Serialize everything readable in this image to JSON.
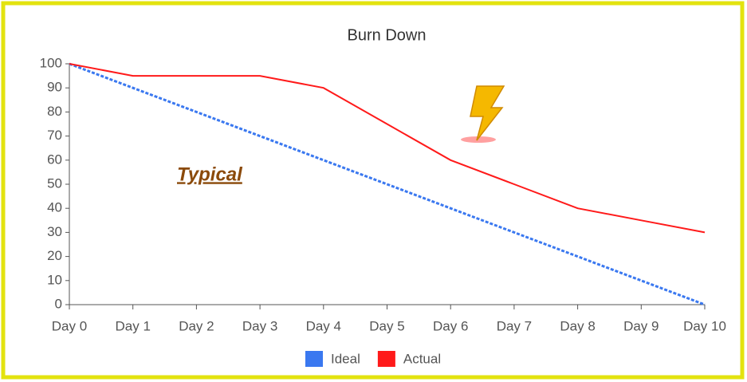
{
  "chart_data": {
    "type": "line",
    "title": "Burn Down",
    "categories": [
      "Day 0",
      "Day 1",
      "Day 2",
      "Day 3",
      "Day 4",
      "Day 5",
      "Day 6",
      "Day 7",
      "Day 8",
      "Day 9",
      "Day 10"
    ],
    "series": [
      {
        "name": "Ideal",
        "color": "#3a78f0",
        "dashed": true,
        "values": [
          100,
          90,
          80,
          70,
          60,
          50,
          40,
          30,
          20,
          10,
          0
        ]
      },
      {
        "name": "Actual",
        "color": "#ff1a1a",
        "dashed": false,
        "values": [
          100,
          95,
          95,
          95,
          90,
          75,
          60,
          50,
          40,
          35,
          30
        ]
      }
    ],
    "ylim": [
      0,
      100
    ],
    "yticks": [
      0,
      10,
      20,
      30,
      40,
      50,
      60,
      70,
      80,
      90,
      100
    ],
    "annotation": "Typical",
    "legend": "bottom"
  }
}
